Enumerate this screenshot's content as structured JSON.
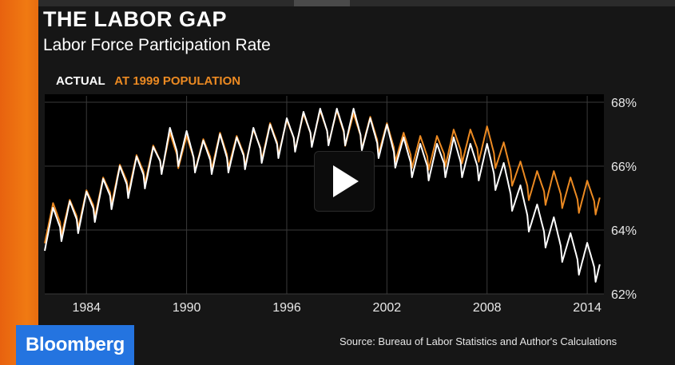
{
  "colors": {
    "actual": "#ffffff",
    "at_1999_population": "#ec8a22",
    "brand": "#2474e0",
    "accent": "#f07a12"
  },
  "header": {
    "title": "THE LABOR GAP",
    "subtitle": "Labor Force Participation Rate"
  },
  "legend": {
    "actual": "ACTUAL",
    "at_1999_population": "AT 1999 POPULATION"
  },
  "play_icon": "play-icon",
  "brand": {
    "name": "Bloomberg"
  },
  "source": "Source: Bureau of Labor Statistics and Author's Calculations",
  "chart_data": {
    "type": "line",
    "title": "THE LABOR GAP",
    "subtitle": "Labor Force Participation Rate",
    "xlim": [
      1981.5,
      2015
    ],
    "ylim": [
      62,
      68
    ],
    "x_ticks": [
      1984,
      1990,
      1996,
      2002,
      2008,
      2014
    ],
    "x_tick_labels": [
      "1984",
      "1990",
      "1996",
      "2002",
      "2008",
      "2014"
    ],
    "y_ticks": [
      68,
      66,
      64,
      62
    ],
    "y_tick_labels": [
      "68%",
      "66%",
      "64%",
      "62%"
    ],
    "grid": true,
    "legend_position": "top-left",
    "series": [
      {
        "name": "ACTUAL",
        "color": "#ffffff",
        "x": [
          1981.5,
          1982,
          1983,
          1984,
          1985,
          1986,
          1987,
          1988,
          1989,
          1990,
          1991,
          1992,
          1993,
          1994,
          1995,
          1996,
          1997,
          1998,
          1999,
          2000,
          2001,
          2002,
          2003,
          2004,
          2005,
          2006,
          2007,
          2008,
          2009,
          2010,
          2011,
          2012,
          2013,
          2014,
          2014.7
        ],
        "y": [
          63.8,
          64.0,
          64.2,
          64.5,
          64.9,
          65.3,
          65.6,
          65.9,
          66.5,
          66.4,
          66.1,
          66.3,
          66.2,
          66.5,
          66.6,
          66.8,
          67.0,
          67.1,
          67.1,
          67.1,
          66.8,
          66.6,
          66.2,
          66.0,
          66.0,
          66.2,
          66.0,
          66.0,
          65.4,
          64.7,
          64.1,
          63.7,
          63.2,
          62.9,
          62.8
        ]
      },
      {
        "name": "AT 1999 POPULATION",
        "color": "#ec8a22",
        "x": [
          1981.5,
          1982,
          1983,
          1984,
          1985,
          1986,
          1987,
          1988,
          1989,
          1990,
          1991,
          1992,
          1993,
          1994,
          1995,
          1996,
          1997,
          1998,
          1999,
          2000,
          2001,
          2002,
          2003,
          2004,
          2005,
          2006,
          2007,
          2008,
          2009,
          2010,
          2011,
          2012,
          2013,
          2014,
          2014.7
        ],
        "y": [
          64.0,
          64.2,
          64.3,
          64.6,
          65.0,
          65.4,
          65.7,
          66.0,
          66.4,
          66.3,
          66.2,
          66.4,
          66.3,
          66.5,
          66.7,
          66.8,
          67.0,
          67.1,
          67.1,
          67.0,
          66.9,
          66.7,
          66.4,
          66.3,
          66.3,
          66.5,
          66.5,
          66.6,
          66.1,
          65.5,
          65.2,
          65.2,
          65.0,
          64.9,
          64.9
        ]
      }
    ]
  }
}
